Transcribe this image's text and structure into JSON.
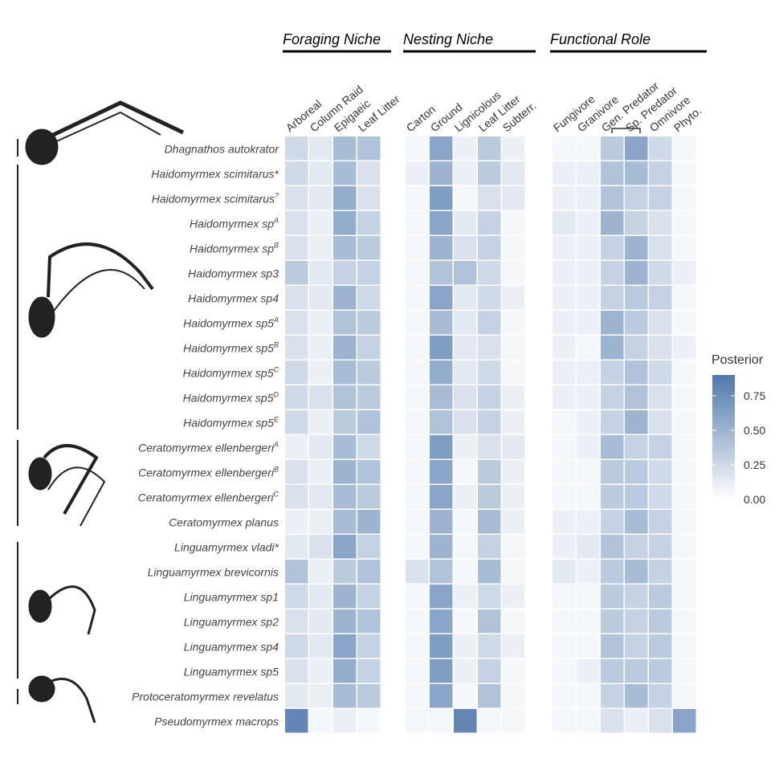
{
  "chart_data": {
    "type": "heatmap",
    "groups": [
      {
        "title": "Foraging Niche",
        "count": 4
      },
      {
        "title": "Nesting Niche",
        "count": 5
      },
      {
        "title": "Functional Role",
        "count": 6
      }
    ],
    "categories": [
      "Arboreal",
      "Column Raid",
      "Epigaeic",
      "Leaf Litter",
      "Carton",
      "Ground",
      "Lignicolous",
      "Leaf Litter",
      "Subterr.",
      "Fungivore",
      "Granivore",
      "Gen. Predator",
      "Sp. Predator",
      "Omnivore",
      "Phyto."
    ],
    "rows": [
      {
        "label": "Dhagnathos autokrator"
      },
      {
        "label": "Haidomyrmex scimitarus*"
      },
      {
        "label": "Haidomyrmex scimitarus",
        "sup": "?"
      },
      {
        "label": "Haidomyrmex sp",
        "sup": "A"
      },
      {
        "label": "Haidomyrmex sp",
        "sup": "B"
      },
      {
        "label": "Haidomyrmex sp3"
      },
      {
        "label": "Haidomyrmex sp4"
      },
      {
        "label": "Haidomyrmex sp5",
        "sup": "A"
      },
      {
        "label": "Haidomyrmex sp5",
        "sup": "B"
      },
      {
        "label": "Haidomyrmex sp5",
        "sup": "C"
      },
      {
        "label": "Haidomyrmex sp5",
        "sup": "D"
      },
      {
        "label": "Haidomyrmex sp5",
        "sup": "E"
      },
      {
        "label": "Ceratomyrmex ellenbergeri",
        "sup": "A"
      },
      {
        "label": "Ceratomyrmex ellenbergeri",
        "sup": "B"
      },
      {
        "label": "Ceratomyrmex ellenbergeri",
        "sup": "C"
      },
      {
        "label": "Ceratomyrmex planus"
      },
      {
        "label": "Linguamyrmex vladi*"
      },
      {
        "label": "Linguamyrmex brevicornis"
      },
      {
        "label": "Linguamyrmex sp1"
      },
      {
        "label": "Linguamyrmex sp2"
      },
      {
        "label": "Linguamyrmex sp4"
      },
      {
        "label": "Linguamyrmex sp5"
      },
      {
        "label": "Protoceratomyrmex revelatus"
      },
      {
        "label": "Pseudomyrmex macrops"
      }
    ],
    "z": [
      [
        0.25,
        0.15,
        0.45,
        0.4,
        0.05,
        0.6,
        0.1,
        0.35,
        0.1,
        0.05,
        0.05,
        0.35,
        0.6,
        0.25,
        0.05
      ],
      [
        0.25,
        0.15,
        0.45,
        0.2,
        0.1,
        0.5,
        0.1,
        0.35,
        0.15,
        0.1,
        0.1,
        0.4,
        0.45,
        0.3,
        0.05
      ],
      [
        0.2,
        0.15,
        0.55,
        0.2,
        0.05,
        0.65,
        0.05,
        0.2,
        0.15,
        0.1,
        0.1,
        0.4,
        0.3,
        0.3,
        0.05
      ],
      [
        0.2,
        0.1,
        0.55,
        0.3,
        0.05,
        0.6,
        0.15,
        0.3,
        0.05,
        0.15,
        0.1,
        0.5,
        0.3,
        0.2,
        0.05
      ],
      [
        0.2,
        0.1,
        0.45,
        0.35,
        0.05,
        0.5,
        0.2,
        0.3,
        0.05,
        0.1,
        0.1,
        0.3,
        0.5,
        0.2,
        0.05
      ],
      [
        0.35,
        0.15,
        0.3,
        0.3,
        0.05,
        0.4,
        0.4,
        0.25,
        0.05,
        0.1,
        0.1,
        0.3,
        0.5,
        0.25,
        0.1
      ],
      [
        0.2,
        0.15,
        0.5,
        0.25,
        0.05,
        0.6,
        0.15,
        0.25,
        0.1,
        0.1,
        0.1,
        0.3,
        0.35,
        0.3,
        0.05
      ],
      [
        0.2,
        0.1,
        0.4,
        0.35,
        0.05,
        0.45,
        0.15,
        0.3,
        0.05,
        0.1,
        0.1,
        0.5,
        0.35,
        0.2,
        0.05
      ],
      [
        0.2,
        0.1,
        0.5,
        0.3,
        0.05,
        0.65,
        0.15,
        0.2,
        0.05,
        0.1,
        0.05,
        0.5,
        0.3,
        0.2,
        0.1
      ],
      [
        0.25,
        0.1,
        0.45,
        0.35,
        0.05,
        0.55,
        0.15,
        0.25,
        0.05,
        0.1,
        0.1,
        0.3,
        0.4,
        0.25,
        0.05
      ],
      [
        0.25,
        0.2,
        0.4,
        0.35,
        0.05,
        0.45,
        0.2,
        0.3,
        0.1,
        0.1,
        0.1,
        0.3,
        0.4,
        0.2,
        0.05
      ],
      [
        0.25,
        0.1,
        0.35,
        0.4,
        0.05,
        0.4,
        0.2,
        0.3,
        0.1,
        0.05,
        0.1,
        0.3,
        0.5,
        0.2,
        0.05
      ],
      [
        0.1,
        0.15,
        0.45,
        0.25,
        0.05,
        0.65,
        0.1,
        0.2,
        0.15,
        0.05,
        0.1,
        0.45,
        0.3,
        0.3,
        0.05
      ],
      [
        0.2,
        0.1,
        0.5,
        0.4,
        0.05,
        0.6,
        0.05,
        0.35,
        0.1,
        0.05,
        0.05,
        0.35,
        0.35,
        0.25,
        0.05
      ],
      [
        0.2,
        0.15,
        0.45,
        0.35,
        0.05,
        0.6,
        0.1,
        0.35,
        0.1,
        0.05,
        0.05,
        0.35,
        0.35,
        0.25,
        0.05
      ],
      [
        0.1,
        0.1,
        0.45,
        0.5,
        0.05,
        0.5,
        0.05,
        0.45,
        0.1,
        0.1,
        0.1,
        0.3,
        0.45,
        0.3,
        0.05
      ],
      [
        0.15,
        0.2,
        0.6,
        0.3,
        0.05,
        0.5,
        0.05,
        0.3,
        0.05,
        0.1,
        0.15,
        0.4,
        0.3,
        0.3,
        0.05
      ],
      [
        0.4,
        0.1,
        0.35,
        0.4,
        0.2,
        0.4,
        0.05,
        0.45,
        0.05,
        0.15,
        0.1,
        0.35,
        0.45,
        0.3,
        0.05
      ],
      [
        0.25,
        0.15,
        0.5,
        0.3,
        0.05,
        0.6,
        0.1,
        0.25,
        0.1,
        0.05,
        0.05,
        0.35,
        0.3,
        0.35,
        0.05
      ],
      [
        0.2,
        0.15,
        0.5,
        0.4,
        0.05,
        0.6,
        0.05,
        0.4,
        0.05,
        0.05,
        0.05,
        0.35,
        0.3,
        0.35,
        0.05
      ],
      [
        0.25,
        0.15,
        0.6,
        0.3,
        0.05,
        0.65,
        0.1,
        0.25,
        0.1,
        0.05,
        0.05,
        0.4,
        0.3,
        0.35,
        0.05
      ],
      [
        0.2,
        0.1,
        0.55,
        0.3,
        0.05,
        0.65,
        0.1,
        0.3,
        0.05,
        0.05,
        0.1,
        0.35,
        0.35,
        0.35,
        0.05
      ],
      [
        0.15,
        0.1,
        0.45,
        0.35,
        0.05,
        0.6,
        0.05,
        0.4,
        0.05,
        0.05,
        0.05,
        0.3,
        0.45,
        0.3,
        0.05
      ],
      [
        0.8,
        0.05,
        0.1,
        0.05,
        0.05,
        0.05,
        0.8,
        0.05,
        0.05,
        0.05,
        0.05,
        0.2,
        0.1,
        0.2,
        0.6
      ]
    ],
    "colorbar": {
      "title": "Posterior",
      "clim": [
        0,
        0.9
      ],
      "color": "#4f78ab",
      "ticks": [
        {
          "value": 0,
          "label": "0.00"
        },
        {
          "value": 0.25,
          "label": "0.25"
        },
        {
          "value": 0.5,
          "label": "0.50"
        },
        {
          "value": 0.75,
          "label": "0.75"
        }
      ]
    }
  }
}
